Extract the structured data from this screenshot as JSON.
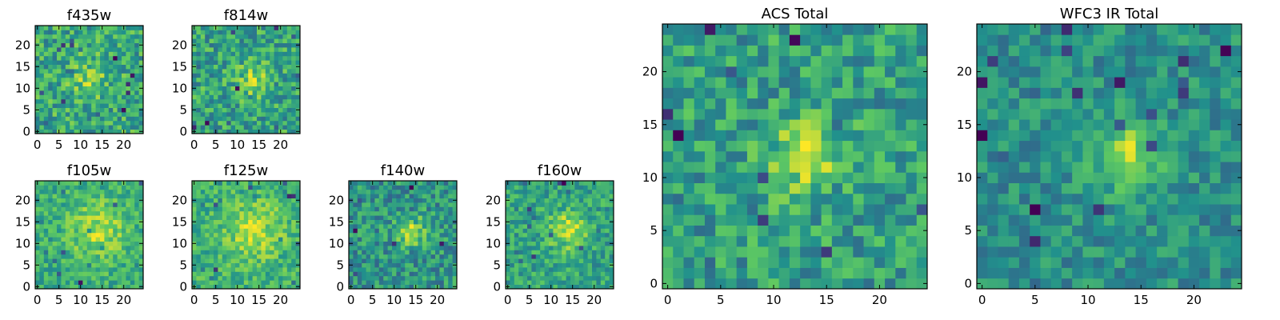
{
  "colormap": [
    "#440154",
    "#3b528b",
    "#21918c",
    "#5ec962",
    "#fde725"
  ],
  "chart_data": [
    {
      "type": "heatmap",
      "title": "f435w",
      "grid_size": 25,
      "clim": [
        0,
        1
      ],
      "source_peak": [
        12,
        12
      ],
      "source_amplitude": 0.18,
      "source_sigma": 3.0,
      "base_level": 0.6,
      "noise_level": 0.22,
      "xticks": [
        0,
        5,
        10,
        15,
        20
      ],
      "yticks": [
        0,
        5,
        10,
        15,
        20
      ],
      "xtick_labels": [
        "0",
        "5",
        "10",
        "15",
        "20"
      ],
      "ytick_labels": [
        "0",
        "5",
        "10",
        "15",
        "20"
      ]
    },
    {
      "type": "heatmap",
      "title": "f814w",
      "grid_size": 25,
      "clim": [
        0,
        1
      ],
      "source_peak": [
        14,
        12
      ],
      "source_amplitude": 0.28,
      "source_sigma": 2.5,
      "base_level": 0.58,
      "noise_level": 0.22,
      "xticks": [
        0,
        5,
        10,
        15,
        20
      ],
      "yticks": [
        0,
        5,
        10,
        15,
        20
      ],
      "xtick_labels": [
        "0",
        "5",
        "10",
        "15",
        "20"
      ],
      "ytick_labels": [
        "0",
        "5",
        "10",
        "15",
        "20"
      ]
    },
    {
      "type": "heatmap",
      "title": "f105w",
      "grid_size": 25,
      "clim": [
        0,
        1
      ],
      "source_peak": [
        14,
        13
      ],
      "source_amplitude": 0.25,
      "source_sigma": 4.5,
      "base_level": 0.62,
      "noise_level": 0.16,
      "xticks": [
        0,
        5,
        10,
        15,
        20
      ],
      "yticks": [
        0,
        5,
        10,
        15,
        20
      ],
      "xtick_labels": [
        "0",
        "5",
        "10",
        "15",
        "20"
      ],
      "ytick_labels": [
        "0",
        "5",
        "10",
        "15",
        "20"
      ]
    },
    {
      "type": "heatmap",
      "title": "f125w",
      "grid_size": 25,
      "clim": [
        0,
        1
      ],
      "source_peak": [
        14,
        13
      ],
      "source_amplitude": 0.25,
      "source_sigma": 4.5,
      "base_level": 0.64,
      "noise_level": 0.16,
      "xticks": [
        0,
        5,
        10,
        15,
        20
      ],
      "yticks": [
        0,
        5,
        10,
        15,
        20
      ],
      "xtick_labels": [
        "0",
        "5",
        "10",
        "15",
        "20"
      ],
      "ytick_labels": [
        "0",
        "5",
        "10",
        "15",
        "20"
      ]
    },
    {
      "type": "heatmap",
      "title": "f140w",
      "grid_size": 25,
      "clim": [
        0,
        1
      ],
      "source_peak": [
        14,
        13
      ],
      "source_amplitude": 0.35,
      "source_sigma": 2.5,
      "base_level": 0.52,
      "noise_level": 0.2,
      "xticks": [
        0,
        5,
        10,
        15,
        20
      ],
      "yticks": [
        0,
        5,
        10,
        15,
        20
      ],
      "xtick_labels": [
        "0",
        "5",
        "10",
        "15",
        "20"
      ],
      "ytick_labels": [
        "0",
        "5",
        "10",
        "15",
        "20"
      ]
    },
    {
      "type": "heatmap",
      "title": "f160w",
      "grid_size": 25,
      "clim": [
        0,
        1
      ],
      "source_peak": [
        14,
        13
      ],
      "source_amplitude": 0.35,
      "source_sigma": 3.0,
      "base_level": 0.58,
      "noise_level": 0.17,
      "xticks": [
        0,
        5,
        10,
        15,
        20
      ],
      "yticks": [
        0,
        5,
        10,
        15,
        20
      ],
      "xtick_labels": [
        "0",
        "5",
        "10",
        "15",
        "20"
      ],
      "ytick_labels": [
        "0",
        "5",
        "10",
        "15",
        "20"
      ]
    },
    {
      "type": "heatmap",
      "title": "ACS Total",
      "grid_size": 25,
      "clim": [
        0,
        1
      ],
      "source_peak": [
        13,
        12
      ],
      "source_amplitude": 0.3,
      "source_sigma": 2.5,
      "base_level": 0.56,
      "noise_level": 0.2,
      "xticks": [
        0,
        5,
        10,
        15,
        20
      ],
      "yticks": [
        0,
        5,
        10,
        15,
        20
      ],
      "xtick_labels": [
        "0",
        "5",
        "10",
        "15",
        "20"
      ],
      "ytick_labels": [
        "0",
        "5",
        "10",
        "15",
        "20"
      ]
    },
    {
      "type": "heatmap",
      "title": "WFC3 IR Total",
      "grid_size": 25,
      "clim": [
        0,
        1
      ],
      "source_peak": [
        14,
        12
      ],
      "source_amplitude": 0.38,
      "source_sigma": 2.2,
      "base_level": 0.5,
      "noise_level": 0.15,
      "xticks": [
        0,
        5,
        10,
        15,
        20
      ],
      "yticks": [
        0,
        5,
        10,
        15,
        20
      ],
      "xtick_labels": [
        "0",
        "5",
        "10",
        "15",
        "20"
      ],
      "ytick_labels": [
        "0",
        "5",
        "10",
        "15",
        "20"
      ]
    }
  ]
}
